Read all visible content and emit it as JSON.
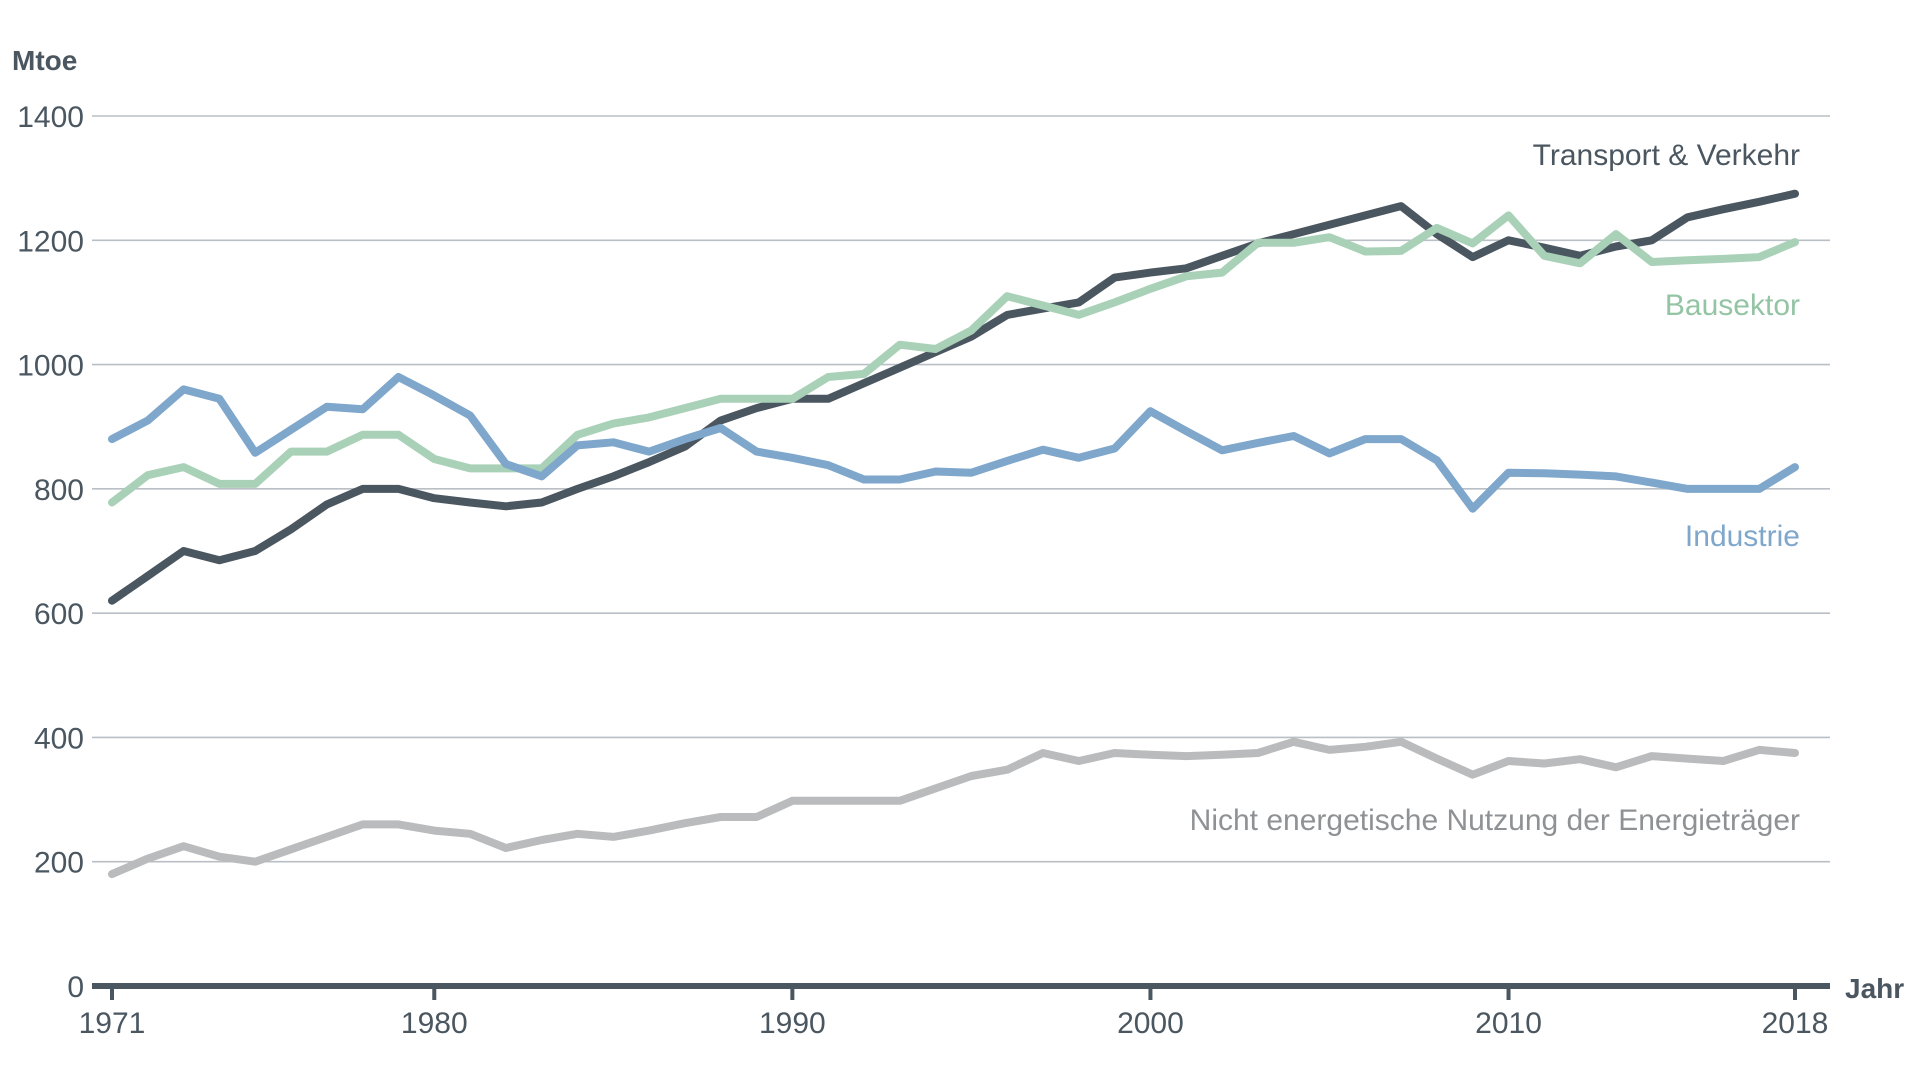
{
  "chart_data": {
    "type": "line",
    "title": "",
    "xlabel": "Jahr",
    "ylabel": "Mtoe",
    "ylim": [
      0,
      1400
    ],
    "xlim": [
      1971,
      2018
    ],
    "grid": true,
    "y_ticks": [
      "0",
      "200",
      "400",
      "600",
      "800",
      "1000",
      "1200",
      "1400"
    ],
    "x_ticks": [
      "1971",
      "1980",
      "1990",
      "2000",
      "2010",
      "2018"
    ],
    "x": [
      1971,
      1972,
      1973,
      1974,
      1975,
      1976,
      1977,
      1978,
      1979,
      1980,
      1981,
      1982,
      1983,
      1984,
      1985,
      1986,
      1987,
      1988,
      1989,
      1990,
      1991,
      1992,
      1993,
      1994,
      1995,
      1996,
      1997,
      1998,
      1999,
      2000,
      2001,
      2002,
      2003,
      2004,
      2005,
      2006,
      2007,
      2008,
      2009,
      2010,
      2011,
      2012,
      2013,
      2014,
      2015,
      2016,
      2017,
      2018
    ],
    "series": [
      {
        "name": "Transport & Verkehr",
        "color": "#4a5660",
        "values": [
          620,
          660,
          700,
          685,
          700,
          735,
          775,
          800,
          800,
          785,
          778,
          772,
          778,
          800,
          820,
          843,
          868,
          910,
          930,
          945,
          945,
          970,
          995,
          1020,
          1045,
          1080,
          1090,
          1100,
          1140,
          1148,
          1155,
          1175,
          1195,
          1210,
          1225,
          1240,
          1255,
          1210,
          1173,
          1200,
          1188,
          1175,
          1190,
          1200,
          1237,
          1250,
          1262,
          1275
        ]
      },
      {
        "name": "Bausektor",
        "color": "#a9d1b7",
        "values": [
          778,
          822,
          835,
          808,
          808,
          860,
          860,
          887,
          887,
          848,
          833,
          833,
          833,
          887,
          905,
          915,
          930,
          945,
          945,
          945,
          980,
          985,
          1032,
          1025,
          1055,
          1110,
          1095,
          1080,
          1100,
          1122,
          1142,
          1148,
          1196,
          1196,
          1205,
          1182,
          1183,
          1220,
          1195,
          1240,
          1175,
          1163,
          1210,
          1165,
          1168,
          1170,
          1173,
          1197
        ]
      },
      {
        "name": "Industrie",
        "color": "#7fa7cc",
        "values": [
          880,
          910,
          960,
          945,
          858,
          895,
          932,
          928,
          980,
          950,
          918,
          840,
          820,
          870,
          875,
          860,
          880,
          898,
          860,
          850,
          838,
          815,
          815,
          828,
          826,
          845,
          863,
          850,
          865,
          925,
          893,
          862,
          874,
          885,
          857,
          880,
          880,
          846,
          768,
          826,
          825,
          823,
          820,
          810,
          800,
          800,
          800,
          835
        ]
      },
      {
        "name": "Nicht energetische Nutzung der Energieträger",
        "color": "#b9bbbd",
        "values": [
          180,
          205,
          225,
          208,
          200,
          220,
          240,
          260,
          260,
          250,
          245,
          222,
          235,
          245,
          240,
          250,
          262,
          272,
          272,
          298,
          298,
          298,
          298,
          318,
          338,
          348,
          375,
          362,
          375,
          372,
          370,
          372,
          375,
          393,
          380,
          385,
          393,
          366,
          340,
          362,
          358,
          365,
          352,
          370,
          366,
          362,
          380,
          375
        ]
      }
    ]
  }
}
